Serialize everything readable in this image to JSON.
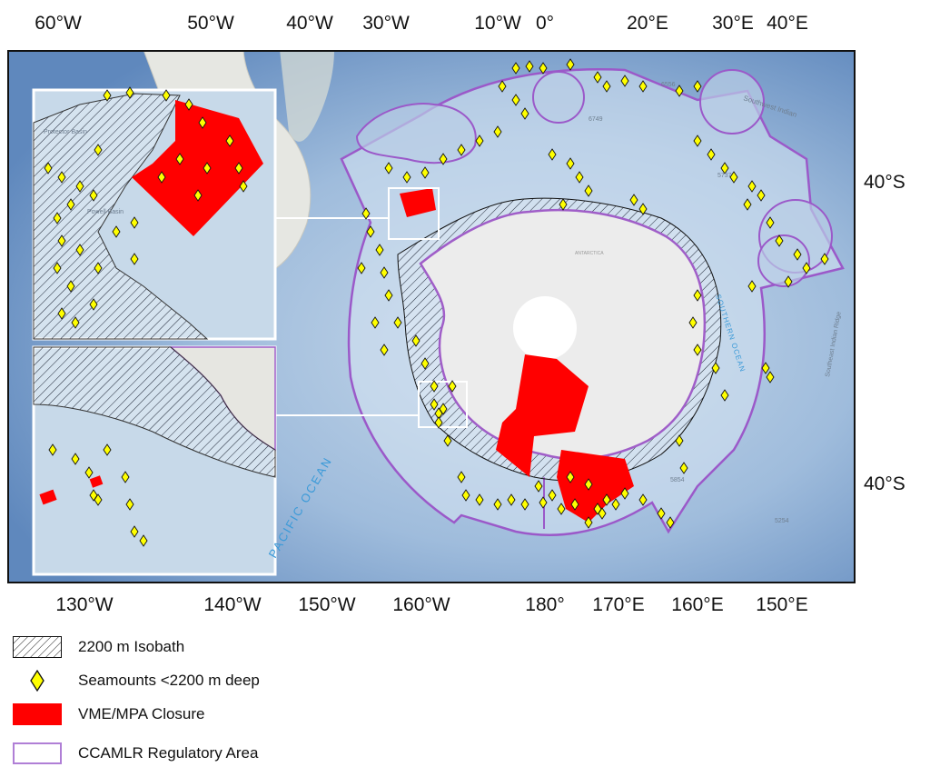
{
  "top_ticks": [
    "60°W",
    "50°W",
    "40°W",
    "30°W",
    "10°W",
    "0°",
    "20°E",
    "30°E",
    "40°E"
  ],
  "bottom_ticks": [
    "130°W",
    "140°W",
    "150°W",
    "160°W",
    "180°",
    "170°E",
    "160°E",
    "150°E"
  ],
  "right_ticks": [
    "40°S",
    "40°S"
  ],
  "map_labels": {
    "southern_ocean": "SOUTHERN OCEAN",
    "southeast_indian": "Southeast Indian Ridge",
    "southwest_indian": "Southwest Indian",
    "pacific": "PACIFIC OCEAN",
    "antarctica": "ANTARCTICA",
    "depth_a": "6556",
    "depth_b": "6749",
    "depth_c": "5737",
    "depth_d": "5854",
    "depth_e": "5254",
    "protector_basin": "Protector Basin",
    "powell_basin": "Powell Basin"
  },
  "legend": [
    {
      "label": "2200 m Isobath",
      "swatch": "hatch"
    },
    {
      "label": "Seamounts <2200 m deep",
      "swatch": "diamond"
    },
    {
      "label": "VME/MPA Closure",
      "swatch": "red"
    },
    {
      "label": "CCAMLR Regulatory Area",
      "swatch": "purple-outline"
    }
  ],
  "colors": {
    "ocean": "#b7cde3",
    "deep_ocean": "#6f97c7",
    "land": "#e9ebe6",
    "ice": "#eeeeee",
    "closure": "#ff0000",
    "seamount": "#ffff00",
    "ccamlr": "#9b59c9",
    "inset_border": "#ffffff"
  }
}
